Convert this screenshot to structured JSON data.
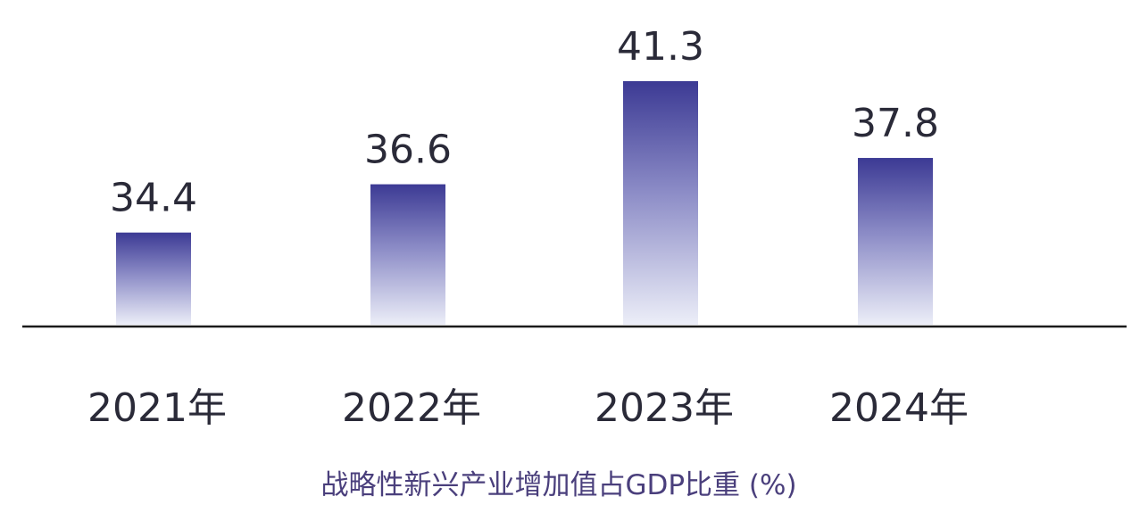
{
  "colors": {
    "bar_top": "#3c3a94",
    "bar_bottom": "#eceef8",
    "axis": "#1a1a1a",
    "value_text": "#2a2a38",
    "caption_text": "#4a3f7c"
  },
  "chart_data": {
    "type": "bar",
    "categories": [
      "2021年",
      "2022年",
      "2023年",
      "2024年"
    ],
    "values": [
      34.4,
      36.6,
      41.3,
      37.8
    ],
    "value_labels": [
      "34.4",
      "36.6",
      "41.3",
      "37.8"
    ],
    "title": "",
    "xlabel": "战略性新兴产业增加值占GDP比重 (%)",
    "ylabel": "",
    "grid": false,
    "legend": "none",
    "bar_fill": "vertical gradient, dark indigo at top fading to near-white at baseline"
  }
}
